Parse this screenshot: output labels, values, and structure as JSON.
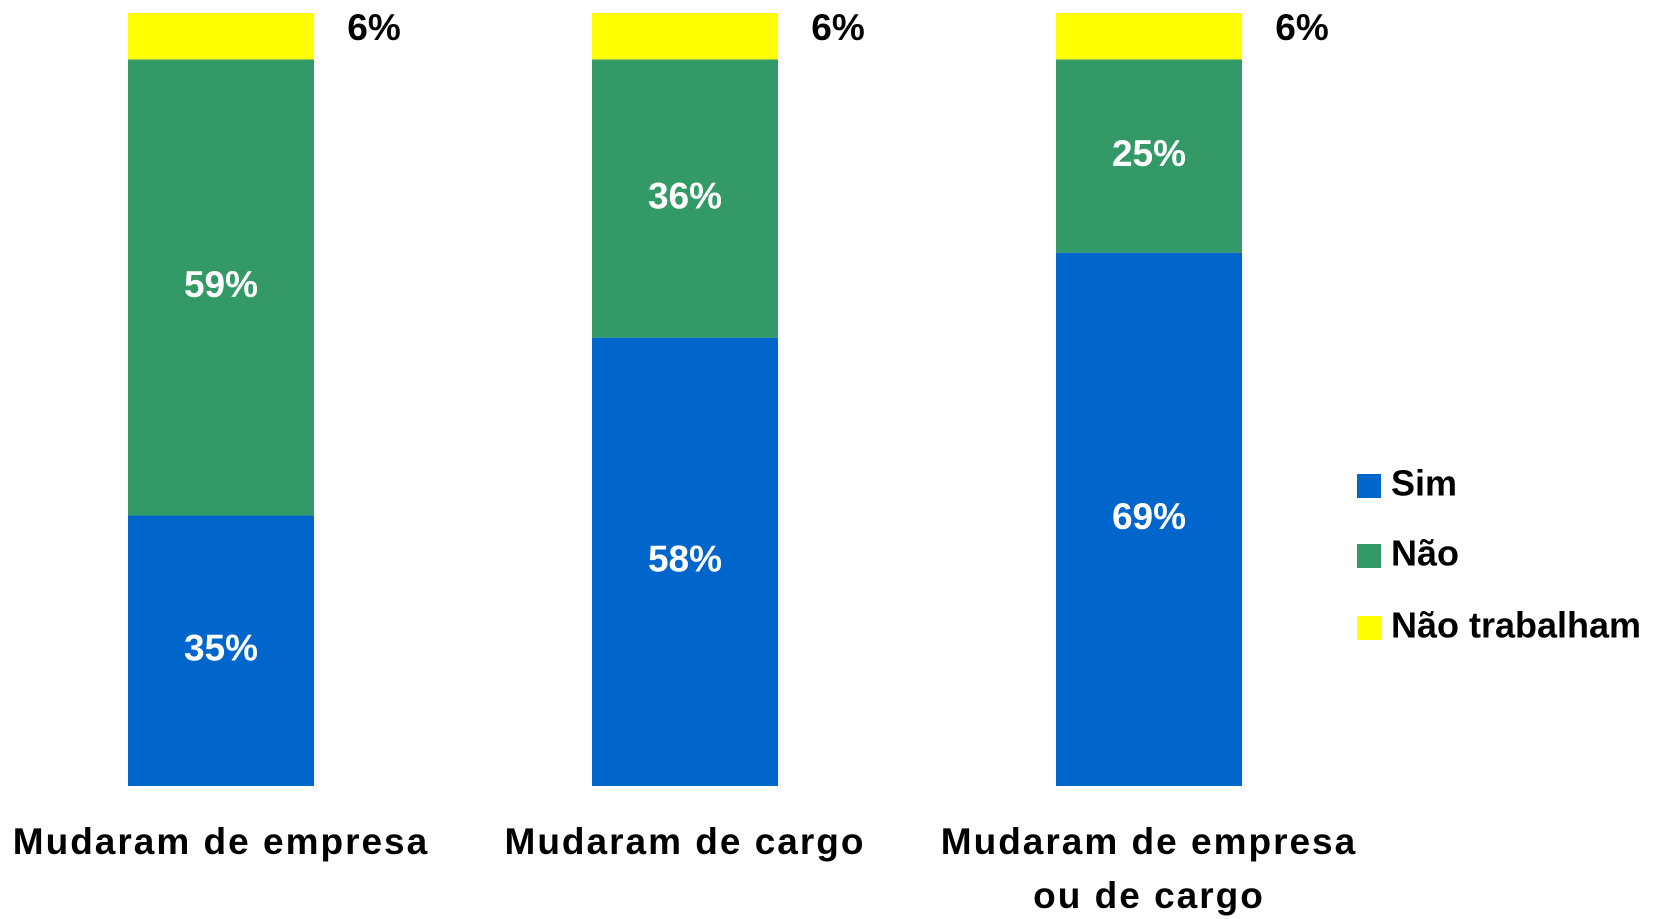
{
  "chart_data": {
    "type": "stacked_bar",
    "categories": [
      "Mudaram de empresa",
      "Mudaram de cargo",
      "Mudaram de empresa ou de cargo"
    ],
    "series": [
      {
        "name": "Sim",
        "color": "#0066cc",
        "values": [
          35,
          58,
          69
        ],
        "value_labels": [
          "35%",
          "58%",
          "69%"
        ]
      },
      {
        "name": "Não",
        "color": "#339966",
        "values": [
          59,
          36,
          25
        ],
        "value_labels": [
          "59%",
          "36%",
          "25%"
        ]
      },
      {
        "name": "Não trabalham",
        "color": "#ffff00",
        "values": [
          6,
          6,
          6
        ],
        "value_labels": [
          "6%",
          "6%",
          "6%"
        ]
      }
    ],
    "ylim": [
      0,
      100
    ],
    "legend": "right"
  }
}
